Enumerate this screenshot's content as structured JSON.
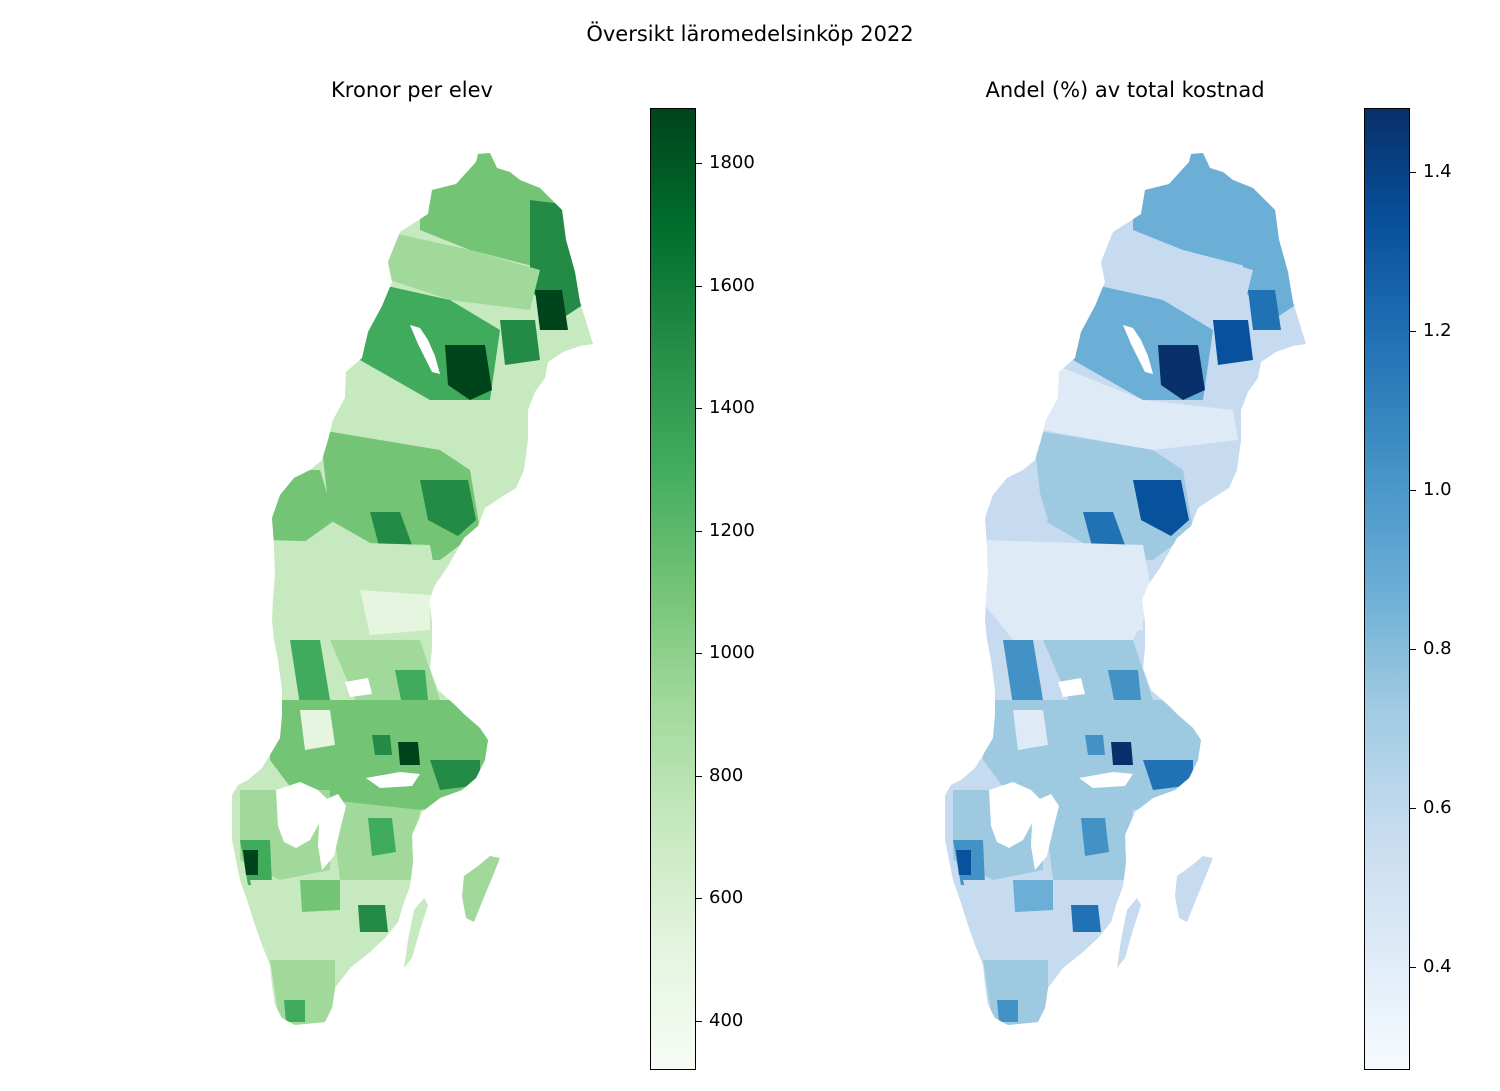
{
  "figure": {
    "suptitle": "Översikt läromedelsinköp 2022"
  },
  "panels": [
    {
      "title": "Kronor per elev",
      "colormap": "Greens",
      "colors": [
        "#f7fcf5",
        "#c7e9c0",
        "#74c476",
        "#238b45",
        "#00441b"
      ],
      "colorbar": {
        "range": [
          320,
          1890
        ],
        "ticks": [
          {
            "value": 400,
            "label": "400"
          },
          {
            "value": 600,
            "label": "600"
          },
          {
            "value": 800,
            "label": "800"
          },
          {
            "value": 1000,
            "label": "1000"
          },
          {
            "value": 1200,
            "label": "1200"
          },
          {
            "value": 1400,
            "label": "1400"
          },
          {
            "value": 1600,
            "label": "1600"
          },
          {
            "value": 1800,
            "label": "1800"
          }
        ]
      }
    },
    {
      "title": "Andel (%) av total kostnad",
      "colormap": "Blues",
      "colors": [
        "#f7fbff",
        "#c6dbef",
        "#6baed6",
        "#2171b5",
        "#08306b"
      ],
      "colorbar": {
        "range": [
          0.27,
          1.48
        ],
        "ticks": [
          {
            "value": 0.4,
            "label": "0.4"
          },
          {
            "value": 0.6,
            "label": "0.6"
          },
          {
            "value": 0.8,
            "label": "0.8"
          },
          {
            "value": 1.0,
            "label": "1.0"
          },
          {
            "value": 1.2,
            "label": "1.2"
          },
          {
            "value": 1.4,
            "label": "1.4"
          }
        ]
      }
    }
  ]
}
